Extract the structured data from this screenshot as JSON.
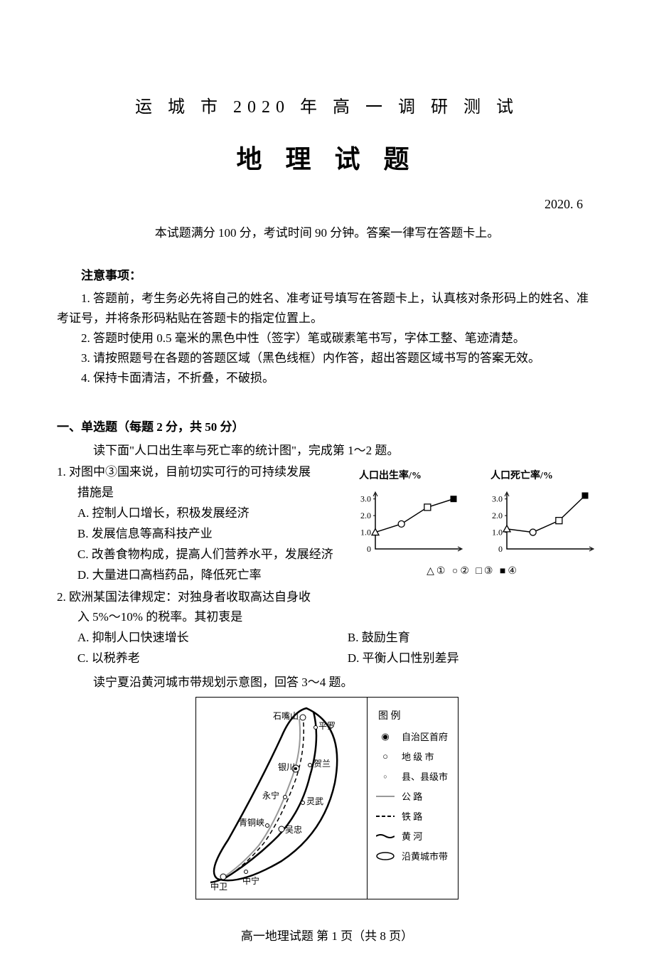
{
  "header": {
    "title1": "运 城 市 2020 年 高 一 调 研 测 试",
    "title2": "地 理 试 题",
    "date": "2020. 6",
    "info": "本试题满分 100 分，考试时间 90 分钟。答案一律写在答题卡上。"
  },
  "notice": {
    "title": "注意事项：",
    "items": [
      "1. 答题前，考生务必先将自己的姓名、准考证号填写在答题卡上，认真核对条形码上的姓名、准考证号，并将条形码粘贴在答题卡的指定位置上。",
      "2. 答题时使用 0.5 毫米的黑色中性（签字）笔或碳素笔书写，字体工整、笔迹清楚。",
      "3. 请按照题号在各题的答题区域（黑色线框）内作答，超出答题区域书写的答案无效。",
      "4. 保持卡面清洁，不折叠，不破损。"
    ]
  },
  "section": {
    "title": "一、单选题（每题 2 分，共 50 分）",
    "desc": "读下面\"人口出生率与死亡率的统计图\"，完成第 1～2 题。"
  },
  "q1": {
    "stem1": "1. 对图中③国来说，目前切实可行的可持续发展",
    "stem2": "措施是",
    "A": "A. 控制人口增长，积极发展经济",
    "B": "B. 发展信息等高科技产业",
    "C": "C. 改善食物构成，提高人们营养水平，发展经济",
    "D": "D. 大量进口高档药品，降低死亡率"
  },
  "q2": {
    "stem1": "2. 欧洲某国法律规定：对独身者收取高达自身收",
    "stem2": "入 5%～10% 的税率。其初衷是",
    "A": "A. 抑制人口快速增长",
    "B": "B. 鼓励生育",
    "C": "C. 以税养老",
    "D": "D. 平衡人口性别差异"
  },
  "desc2": "读宁夏沿黄河城市带规划示意图，回答 3～4 题。",
  "chart": {
    "left_title": "人口出生率/%",
    "right_title": "人口死亡率/%",
    "yticks": [
      "3.0",
      "2.0",
      "1.0",
      "0"
    ],
    "left_points": [
      {
        "x": 0,
        "y": 1.0,
        "m": "tri"
      },
      {
        "x": 1,
        "y": 1.5,
        "m": "circ"
      },
      {
        "x": 2,
        "y": 2.5,
        "m": "sq"
      },
      {
        "x": 3,
        "y": 3.0,
        "m": "fsq"
      }
    ],
    "right_points": [
      {
        "x": 0,
        "y": 1.2,
        "m": "tri"
      },
      {
        "x": 1,
        "y": 1.0,
        "m": "circ"
      },
      {
        "x": 2,
        "y": 1.7,
        "m": "sq"
      },
      {
        "x": 3,
        "y": 3.2,
        "m": "fsq"
      }
    ],
    "axis_color": "#000000",
    "line_color": "#000000",
    "legend": "△①  ○②  □③  ■④"
  },
  "map": {
    "legend_title": "图 例",
    "legend_items": [
      {
        "sym": "capital",
        "label": "自治区首府"
      },
      {
        "sym": "prefcity",
        "label": "地 级 市"
      },
      {
        "sym": "county",
        "label": "县、县级市"
      },
      {
        "sym": "road",
        "label": "公 路"
      },
      {
        "sym": "rail",
        "label": "铁 路"
      },
      {
        "sym": "river",
        "label": "黄 河"
      },
      {
        "sym": "band",
        "label": "沿黄城市带"
      }
    ],
    "places": {
      "shizuishan": "石嘴山",
      "pingluo": "平罗",
      "yinchuan": "银川",
      "helan": "贺兰",
      "yongning": "永宁",
      "lingwu": "灵武",
      "qingtongxia": "青铜峡",
      "wuzhong": "吴忠",
      "zhongwei": "中卫",
      "zhongning": "中宁"
    }
  },
  "footer": "高一地理试题  第 1 页（共 8 页）"
}
